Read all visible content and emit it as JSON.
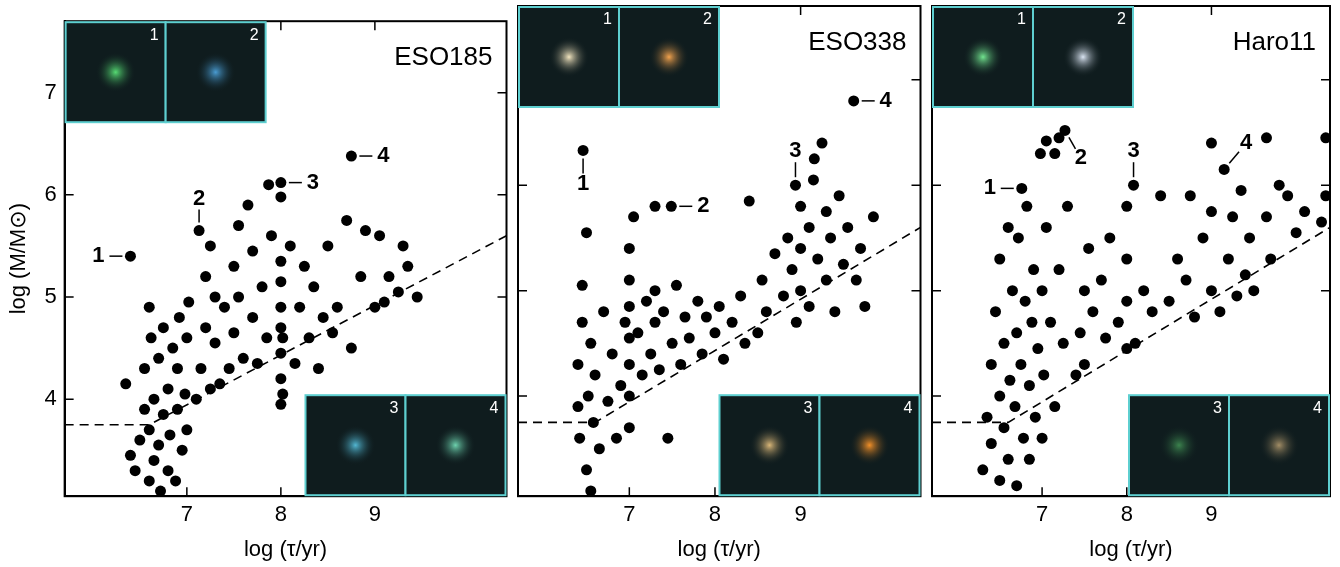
{
  "chart_data": [
    {
      "type": "scatter",
      "title": "ESO185",
      "x_label": "log (τ/yr)",
      "y_label": "log (M/M⊙)",
      "xlim": [
        5.7,
        10.4
      ],
      "ylim": [
        3.05,
        7.7
      ],
      "xticks": [
        7,
        8,
        9
      ],
      "yticks": [
        4,
        5,
        6,
        7
      ],
      "tick_labels": true,
      "grid": false,
      "series": [
        {
          "type": "scatter",
          "marker": "circle",
          "color": "#000000",
          "x": [
            6.4,
            7.13,
            7.87,
            8.0,
            8.0,
            8.75,
            6.35,
            6.4,
            6.45,
            6.5,
            6.55,
            6.55,
            6.6,
            6.6,
            6.6,
            6.62,
            6.65,
            6.65,
            6.7,
            6.7,
            6.72,
            6.75,
            6.75,
            6.8,
            6.8,
            6.82,
            6.85,
            6.88,
            6.9,
            6.9,
            6.92,
            6.95,
            6.98,
            7.0,
            7.0,
            7.02,
            7.1,
            7.15,
            7.2,
            7.2,
            7.25,
            7.25,
            7.3,
            7.3,
            7.35,
            7.4,
            7.45,
            7.5,
            7.5,
            7.55,
            7.6,
            7.65,
            7.7,
            7.7,
            7.75,
            7.8,
            7.85,
            7.9,
            8.0,
            8.0,
            8.0,
            8.0,
            8.0,
            8.0,
            8.0,
            8.02,
            8.02,
            8.1,
            8.2,
            8.25,
            8.3,
            8.35,
            8.45,
            8.5,
            8.6,
            8.7,
            8.75,
            8.85,
            8.9,
            9.0,
            9.05,
            9.15,
            9.25,
            9.3,
            9.35,
            9.45,
            8.15,
            8.4,
            7.55,
            8.55,
            9.1
          ],
          "values": [
            5.4,
            5.65,
            6.1,
            6.12,
            5.98,
            6.38,
            4.15,
            3.45,
            3.3,
            3.6,
            3.9,
            4.3,
            3.2,
            3.7,
            4.9,
            4.6,
            3.4,
            4.0,
            3.55,
            4.4,
            3.1,
            3.85,
            4.7,
            3.3,
            4.1,
            3.65,
            4.5,
            3.2,
            3.9,
            4.3,
            4.8,
            3.5,
            4.05,
            4.6,
            3.7,
            4.95,
            4.0,
            4.3,
            4.7,
            5.2,
            5.5,
            4.1,
            4.55,
            5.0,
            4.15,
            4.9,
            4.3,
            5.3,
            4.65,
            5.0,
            4.4,
            5.9,
            4.8,
            5.45,
            4.35,
            5.1,
            4.6,
            5.6,
            3.95,
            4.2,
            4.45,
            4.7,
            4.9,
            5.15,
            5.35,
            4.05,
            4.6,
            5.5,
            4.9,
            5.3,
            4.6,
            5.1,
            4.8,
            5.5,
            4.9,
            5.75,
            4.5,
            5.2,
            5.65,
            4.9,
            5.6,
            5.2,
            5.05,
            5.5,
            5.3,
            5.0,
            4.35,
            4.3,
            5.7,
            4.65,
            4.95
          ]
        },
        {
          "type": "line",
          "line_style": "dashed",
          "color": "#000000",
          "x": [
            5.7,
            6.6,
            10.4
          ],
          "values": [
            3.75,
            3.75,
            5.6
          ]
        }
      ],
      "annotations": [
        {
          "text": "1",
          "x": 6.4,
          "y": 5.4
        },
        {
          "text": "2",
          "x": 7.13,
          "y": 5.65
        },
        {
          "text": "3",
          "x": 8.0,
          "y": 6.12
        },
        {
          "text": "4",
          "x": 8.75,
          "y": 6.38
        }
      ],
      "inset_labels": [
        "1",
        "2",
        "3",
        "4"
      ]
    },
    {
      "type": "scatter",
      "title": "ESO338",
      "x_label": "log (τ/yr)",
      "xlim": [
        5.7,
        10.4
      ],
      "ylim": [
        3.05,
        7.7
      ],
      "xticks": [
        7,
        8,
        9
      ],
      "yticks": [
        4,
        5,
        6,
        7
      ],
      "tick_labels": "x",
      "grid": false,
      "series": [
        {
          "type": "scatter",
          "marker": "circle",
          "color": "#000000",
          "x": [
            6.46,
            7.49,
            8.94,
            9.62,
            6.4,
            6.4,
            6.42,
            6.45,
            6.45,
            6.5,
            6.5,
            6.52,
            6.55,
            6.55,
            6.58,
            6.6,
            6.65,
            6.7,
            6.75,
            6.8,
            6.85,
            6.9,
            6.95,
            7.0,
            7.0,
            7.0,
            7.0,
            7.0,
            7.0,
            7.0,
            7.05,
            7.1,
            7.15,
            7.2,
            7.25,
            7.3,
            7.3,
            7.3,
            7.35,
            7.4,
            7.45,
            7.5,
            7.55,
            7.6,
            7.65,
            7.7,
            7.8,
            7.85,
            7.9,
            8.0,
            8.05,
            8.1,
            8.2,
            8.3,
            8.35,
            8.4,
            8.5,
            8.55,
            8.6,
            8.7,
            8.8,
            8.85,
            8.9,
            8.95,
            9.0,
            9.0,
            9.0,
            9.16,
            9.1,
            9.1,
            9.15,
            9.2,
            9.25,
            9.3,
            9.3,
            9.35,
            9.4,
            9.45,
            9.5,
            9.55,
            9.65,
            9.7,
            9.75,
            9.85
          ],
          "values": [
            6.33,
            5.8,
            6.0,
            6.8,
            3.9,
            4.3,
            3.6,
            5.05,
            4.7,
            3.3,
            5.55,
            4.0,
            3.1,
            4.5,
            3.75,
            4.2,
            3.5,
            4.8,
            3.95,
            4.4,
            3.6,
            4.1,
            4.7,
            3.7,
            4.0,
            4.3,
            4.55,
            4.85,
            5.1,
            5.4,
            5.7,
            4.6,
            4.2,
            4.9,
            4.4,
            4.7,
            5.0,
            5.8,
            4.25,
            4.8,
            3.6,
            4.5,
            5.05,
            4.3,
            4.75,
            4.55,
            4.9,
            4.4,
            4.75,
            4.6,
            4.85,
            4.35,
            4.7,
            4.95,
            4.5,
            5.85,
            4.6,
            5.1,
            4.8,
            5.35,
            4.95,
            5.5,
            5.2,
            4.7,
            5.8,
            5.4,
            5.0,
            6.25,
            5.6,
            4.85,
            6.05,
            5.3,
            6.4,
            5.75,
            5.1,
            5.5,
            4.8,
            5.9,
            5.25,
            5.6,
            5.1,
            5.4,
            4.85,
            5.7
          ]
        },
        {
          "type": "line",
          "line_style": "dashed",
          "color": "#000000",
          "x": [
            5.7,
            6.6,
            10.4
          ],
          "values": [
            3.75,
            3.75,
            5.6
          ]
        }
      ],
      "annotations": [
        {
          "text": "1",
          "x": 6.46,
          "y": 6.33
        },
        {
          "text": "2",
          "x": 7.49,
          "y": 5.8
        },
        {
          "text": "3",
          "x": 8.94,
          "y": 6.0
        },
        {
          "text": "4",
          "x": 9.62,
          "y": 6.8
        }
      ],
      "inset_labels": [
        "1",
        "2",
        "3",
        "4"
      ]
    },
    {
      "type": "scatter",
      "title": "Haro11",
      "x_label": "log (τ/yr)",
      "xlim": [
        5.7,
        10.4
      ],
      "ylim": [
        3.05,
        7.7
      ],
      "xticks": [
        7,
        8,
        9
      ],
      "yticks": [
        4,
        5,
        6,
        7
      ],
      "tick_labels": "x",
      "grid": false,
      "series": [
        {
          "type": "scatter",
          "marker": "circle",
          "color": "#000000",
          "x": [
            6.76,
            7.27,
            8.08,
            9.15,
            6.3,
            6.35,
            6.4,
            6.4,
            6.45,
            6.5,
            6.5,
            6.5,
            6.55,
            6.55,
            6.6,
            6.6,
            6.62,
            6.65,
            6.68,
            6.7,
            6.7,
            6.72,
            6.75,
            6.78,
            6.8,
            6.82,
            6.85,
            6.85,
            6.88,
            6.9,
            6.92,
            6.95,
            6.98,
            7.0,
            7.0,
            7.02,
            7.05,
            7.1,
            7.15,
            7.15,
            7.2,
            7.2,
            7.25,
            7.3,
            7.05,
            7.4,
            7.45,
            7.5,
            7.5,
            7.55,
            7.6,
            7.7,
            7.75,
            7.8,
            7.9,
            8.0,
            8.0,
            8.0,
            8.0,
            8.1,
            8.2,
            8.3,
            8.4,
            8.5,
            8.6,
            8.7,
            8.75,
            8.8,
            8.9,
            9.0,
            9.0,
            9.0,
            9.1,
            9.2,
            9.25,
            9.3,
            9.35,
            9.4,
            9.45,
            9.5,
            9.65,
            9.65,
            9.7,
            9.8,
            9.9,
            10.0,
            10.1,
            10.35,
            10.3,
            10.35
          ],
          "values": [
            5.97,
            6.52,
            6.0,
            6.15,
            3.3,
            3.8,
            4.3,
            3.55,
            4.8,
            3.2,
            5.3,
            4.0,
            3.7,
            4.5,
            5.6,
            3.4,
            4.15,
            5.0,
            3.9,
            4.6,
            3.15,
            5.5,
            4.3,
            3.6,
            4.9,
            5.8,
            3.4,
            4.1,
            4.7,
            5.2,
            3.8,
            4.45,
            6.3,
            5.0,
            3.6,
            4.2,
            5.6,
            4.7,
            6.3,
            3.9,
            5.2,
            6.45,
            4.5,
            5.8,
            6.42,
            4.2,
            4.6,
            5.0,
            4.3,
            5.4,
            4.8,
            5.1,
            4.55,
            5.5,
            4.7,
            4.45,
            4.9,
            5.3,
            5.8,
            4.5,
            5.0,
            4.8,
            5.9,
            4.9,
            5.3,
            5.1,
            5.9,
            4.75,
            5.5,
            6.4,
            5.0,
            5.75,
            4.8,
            5.3,
            5.7,
            4.95,
            5.95,
            5.15,
            5.5,
            5.0,
            6.45,
            5.7,
            5.3,
            6.0,
            5.9,
            5.55,
            5.75,
            6.45,
            5.65,
            5.9
          ]
        },
        {
          "type": "line",
          "line_style": "dashed",
          "color": "#000000",
          "x": [
            5.7,
            6.6,
            10.4
          ],
          "values": [
            3.75,
            3.75,
            5.6
          ]
        }
      ],
      "annotations": [
        {
          "text": "1",
          "x": 6.76,
          "y": 5.97
        },
        {
          "text": "2",
          "x": 7.27,
          "y": 6.52
        },
        {
          "text": "3",
          "x": 8.08,
          "y": 6.0
        },
        {
          "text": "4",
          "x": 9.15,
          "y": 6.15
        }
      ],
      "inset_labels": [
        "1",
        "2",
        "3",
        "4"
      ]
    }
  ]
}
